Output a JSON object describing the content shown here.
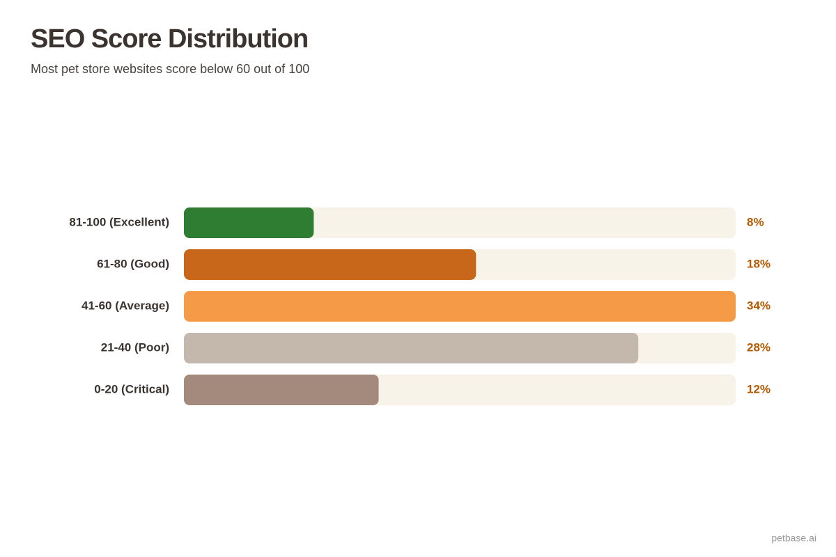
{
  "chart_data": {
    "type": "bar",
    "orientation": "horizontal",
    "title": "SEO Score Distribution",
    "subtitle": "Most pet store websites score below 60 out of 100",
    "categories": [
      "81-100 (Excellent)",
      "61-80 (Good)",
      "41-60 (Average)",
      "21-40 (Poor)",
      "0-20 (Critical)"
    ],
    "values": [
      8,
      18,
      34,
      28,
      12
    ],
    "value_labels": [
      "8%",
      "18%",
      "34%",
      "28%",
      "12%"
    ],
    "colors": [
      "#2e7d32",
      "#c8661a",
      "#f59a46",
      "#c4b8ad",
      "#a38a7c"
    ],
    "xlim": [
      0,
      34
    ],
    "footer": "petbase.ai"
  }
}
